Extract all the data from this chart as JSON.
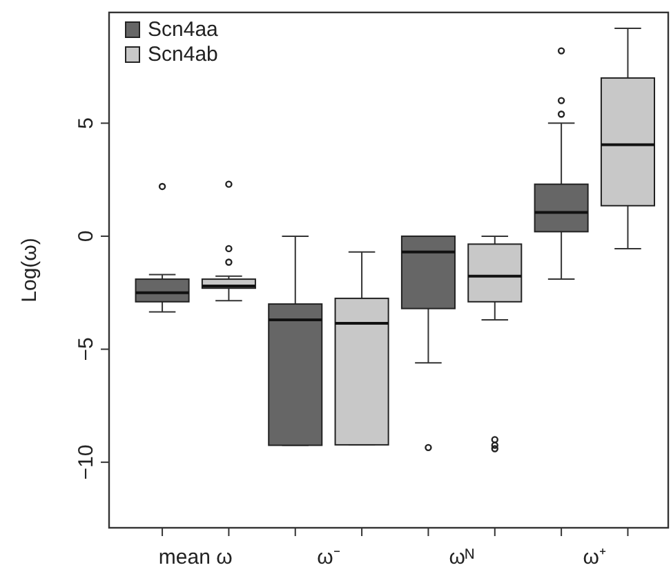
{
  "chart_data": {
    "type": "box",
    "ylabel": "Log(ω)",
    "categories": [
      "mean ω",
      "ω⁻",
      "ωᴺ",
      "ω⁺"
    ],
    "ylim": [
      -12.9,
      9.9
    ],
    "yticks": [
      -10,
      -5,
      0,
      5
    ],
    "legend": "top left",
    "series": [
      {
        "name": "Scn4aa",
        "color": "#666666",
        "boxes": [
          {
            "low": -3.35,
            "q1": -2.9,
            "median": -2.5,
            "q3": -1.9,
            "high": -1.7,
            "outliers": [
              2.2
            ]
          },
          {
            "low": -9.25,
            "q1": -9.25,
            "median": -3.7,
            "q3": -3.0,
            "high": 0
          },
          {
            "low": -5.6,
            "q1": -3.2,
            "median": -0.7,
            "q3": 0,
            "high": 0,
            "outliers": [
              -9.35
            ]
          },
          {
            "low": -1.9,
            "q1": 0.2,
            "median": 1.05,
            "q3": 2.3,
            "high": 5.0,
            "outliers": [
              8.2,
              6.0,
              5.4
            ]
          }
        ]
      },
      {
        "name": "Scn4ab",
        "color": "#c8c8c8",
        "boxes": [
          {
            "low": -2.85,
            "q1": -2.3,
            "median": -2.2,
            "q3": -1.9,
            "high": -1.77,
            "outliers": [
              2.3,
              -0.55,
              -1.15
            ]
          },
          {
            "low": -9.23,
            "q1": -9.23,
            "median": -3.85,
            "q3": -2.75,
            "high": -0.7
          },
          {
            "low": -3.7,
            "q1": -2.9,
            "median": -1.77,
            "q3": -0.35,
            "high": 0,
            "outliers": [
              -9.0,
              -9.25,
              -9.4
            ]
          },
          {
            "low": -0.55,
            "q1": 1.35,
            "median": 4.05,
            "q3": 7.0,
            "high": 9.2
          }
        ]
      }
    ]
  }
}
